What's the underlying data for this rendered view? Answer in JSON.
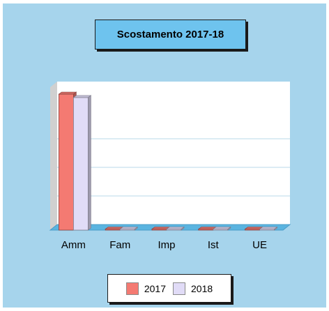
{
  "chart_data": {
    "type": "bar",
    "title": "Scostamento 2017-18",
    "categories": [
      "Amm",
      "Fam",
      "Imp",
      "Ist",
      "UE"
    ],
    "series": [
      {
        "name": "2017",
        "values": [
          100,
          0.5,
          0.5,
          0.5,
          0.5
        ],
        "color": "#f47a72"
      },
      {
        "name": "2018",
        "values": [
          97.5,
          0.5,
          0.5,
          0.5,
          0.5
        ],
        "color": "#e1dcf7"
      }
    ],
    "ylim": [
      0,
      100
    ],
    "grid": true,
    "legend_position": "bottom",
    "style": "3d"
  },
  "colors": {
    "background": "#a6d4ec",
    "title_box": "#6ec3ee",
    "plot_area": "#ffffff",
    "floor": "#5ab4e0",
    "left_wall": "#d0d0d0"
  }
}
